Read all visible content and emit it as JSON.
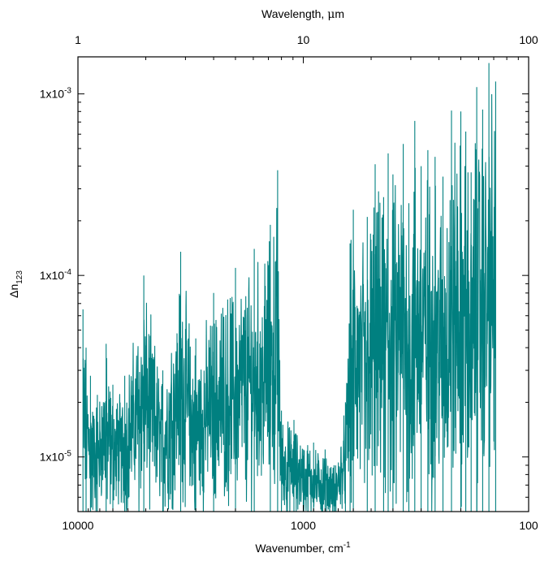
{
  "chart_data": {
    "type": "line",
    "title": "",
    "xlabel_bottom": "Wavenumber, cm",
    "xlabel_bottom_sup": "-1",
    "xlabel_top_prefix": "Wavelength, ",
    "xlabel_top_greek": "μ",
    "xlabel_top_suffix": "m",
    "ylabel_main": "Δn",
    "ylabel_sub": "123",
    "x_scale": "log",
    "x_reversed": true,
    "y_scale": "log",
    "xlim": [
      10000,
      100
    ],
    "ylim": [
      5e-06,
      0.0016
    ],
    "top_axis": {
      "quantity": "wavelength (μm)",
      "xlim": [
        1,
        100
      ],
      "ticks": [
        {
          "value": 1,
          "label": "1"
        },
        {
          "value": 10,
          "label": "10"
        },
        {
          "value": 100,
          "label": "100"
        }
      ]
    },
    "x_ticks": [
      {
        "value": 10000,
        "label": "10000"
      },
      {
        "value": 1000,
        "label": "1000"
      },
      {
        "value": 100,
        "label": "100"
      }
    ],
    "y_ticks": [
      {
        "value": 1e-05,
        "base": "1x10",
        "exp": "-5"
      },
      {
        "value": 0.0001,
        "base": "1x10",
        "exp": "-4"
      },
      {
        "value": 0.001,
        "base": "1x10",
        "exp": "-3"
      }
    ],
    "series": [
      {
        "color": "#008080",
        "description_of_shape": "dense noisy trace whose upper envelope rises with decreasing wavenumber",
        "x": [
          9500,
          9200,
          8800,
          8200,
          7500,
          7000,
          6200,
          5100,
          4200,
          3500,
          3000,
          2500,
          2000,
          1650,
          1400,
          1300,
          1250,
          1100,
          900,
          800,
          730,
          650,
          620,
          600,
          520,
          480,
          440,
          420,
          400,
          360,
          340,
          320,
          300,
          280,
          260,
          240,
          220,
          200,
          190,
          180,
          170,
          160,
          150,
          140
        ],
        "y": [
          6.5e-05,
          4e-05,
          2.8e-05,
          2.2e-05,
          4.2e-05,
          2.5e-05,
          2.8e-05,
          0.0001,
          3e-05,
          0.000135,
          4.5e-05,
          8e-05,
          0.00011,
          0.00014,
          0.00019,
          0.00038,
          1.8e-05,
          1.6e-05,
          1.2e-05,
          1.1e-05,
          9e-06,
          2e-05,
          0.00015,
          0.00023,
          0.00021,
          0.00041,
          0.00027,
          0.00047,
          0.00036,
          0.00053,
          0.00025,
          0.00071,
          0.0004,
          0.00049,
          0.00045,
          0.00035,
          0.00081,
          0.0008,
          0.00062,
          0.00037,
          0.00109,
          0.00082,
          0.00148,
          0.00117
        ]
      }
    ]
  }
}
